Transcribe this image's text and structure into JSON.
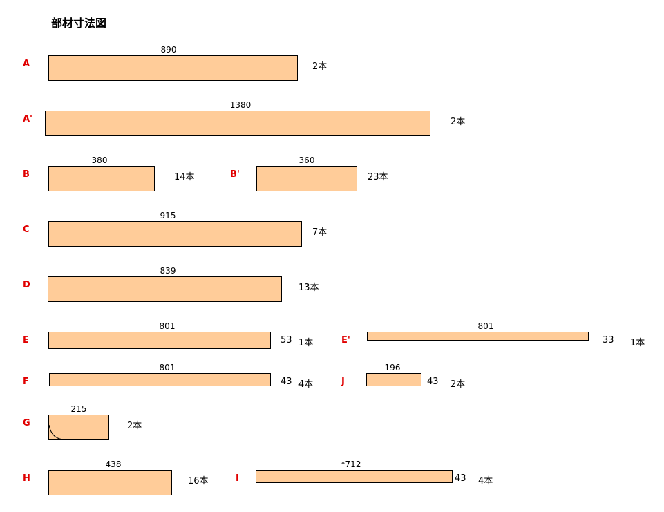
{
  "title": "部材寸法図",
  "parts": {
    "A": {
      "label": "A",
      "length": "890",
      "qty": "2本"
    },
    "A2": {
      "label": "A'",
      "length": "1380",
      "qty": "2本"
    },
    "B": {
      "label": "B",
      "length": "380",
      "qty": "14本"
    },
    "B2": {
      "label": "B'",
      "length": "360",
      "qty": "23本"
    },
    "C": {
      "label": "C",
      "length": "915",
      "qty": "7本"
    },
    "D": {
      "label": "D",
      "length": "839",
      "qty": "13本"
    },
    "E": {
      "label": "E",
      "length": "801",
      "side": "53",
      "qty": "1本"
    },
    "E2": {
      "label": "E'",
      "length": "801",
      "side": "33",
      "qty": "1本"
    },
    "F": {
      "label": "F",
      "length": "801",
      "side": "43",
      "qty": "4本"
    },
    "J": {
      "label": "J",
      "length": "196",
      "side": "43",
      "qty": "2本"
    },
    "G": {
      "label": "G",
      "length": "215",
      "qty": "2本"
    },
    "H": {
      "label": "H",
      "length": "438",
      "qty": "16本"
    },
    "I": {
      "label": "I",
      "length": "*712",
      "side": "43",
      "qty": "4本"
    }
  },
  "colors": {
    "bar_fill": "#ffcc99",
    "label": "#e00000"
  }
}
